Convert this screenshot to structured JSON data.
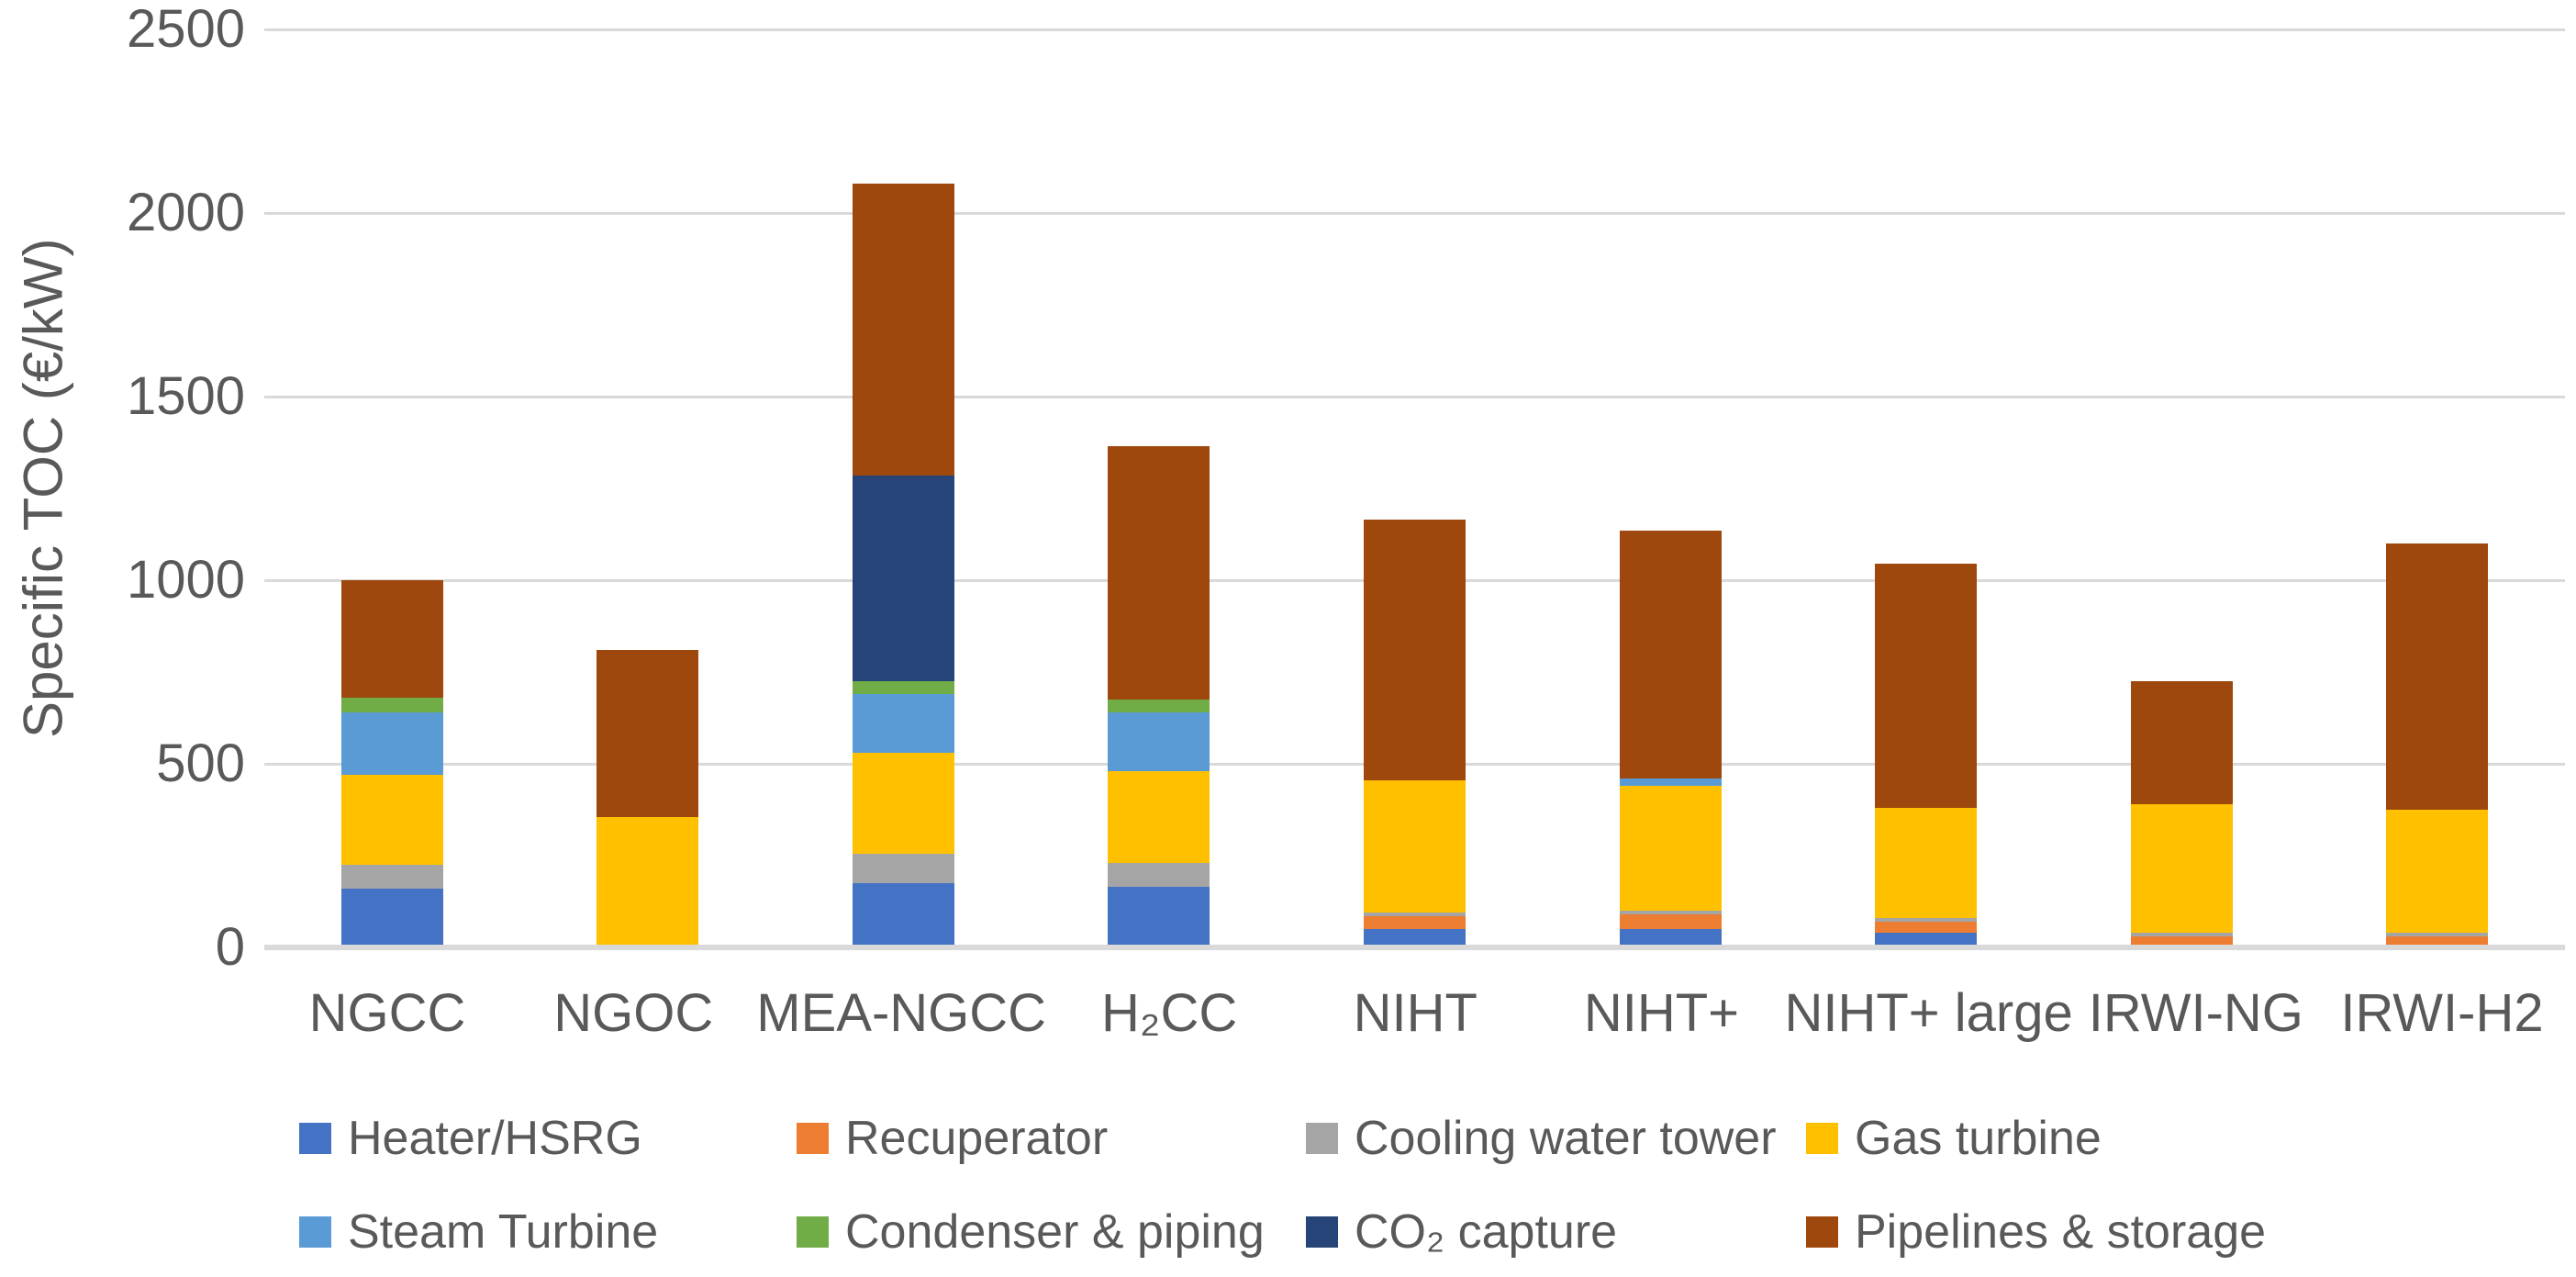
{
  "page": {
    "background": "#FFFFFF",
    "text_color": "#595959"
  },
  "chart_data": {
    "type": "bar",
    "stacked": true,
    "title": "",
    "xlabel": "",
    "ylabel": "Specific TOC (€/kW)",
    "ylim": [
      0,
      2500
    ],
    "yticks": [
      0,
      500,
      1000,
      1500,
      2000,
      2500
    ],
    "grid": "horizontal",
    "gridline_color": "#D9D9D9",
    "axis_line_color": "#D9D9D9",
    "label_color": "#595959",
    "legend_position": "bottom",
    "legend_rows": 2,
    "categories": [
      "NGCC",
      "NGOC",
      "MEA-NGCC",
      "H₂CC",
      "NIHT",
      "NIHT+",
      "NIHT+ large",
      "IRWI-NG",
      "IRWI-H2"
    ],
    "series": [
      {
        "name": "Heater/HSRG",
        "color": "#4472C4",
        "values": [
          160,
          0,
          175,
          165,
          50,
          50,
          40,
          0,
          0
        ]
      },
      {
        "name": "Recuperator",
        "color": "#ED7D31",
        "values": [
          0,
          0,
          0,
          0,
          35,
          40,
          30,
          30,
          30
        ]
      },
      {
        "name": "Cooling water tower",
        "color": "#A5A5A5",
        "values": [
          65,
          0,
          80,
          65,
          10,
          10,
          10,
          10,
          10
        ]
      },
      {
        "name": "Gas turbine",
        "color": "#FFC000",
        "values": [
          245,
          355,
          275,
          250,
          360,
          340,
          300,
          350,
          335
        ]
      },
      {
        "name": "Steam Turbine",
        "color": "#5B9BD5",
        "values": [
          170,
          0,
          160,
          160,
          0,
          20,
          0,
          0,
          0
        ]
      },
      {
        "name": "Condenser & piping",
        "color": "#70AD47",
        "values": [
          40,
          0,
          35,
          35,
          0,
          0,
          0,
          0,
          0
        ]
      },
      {
        "name": "CO₂ capture",
        "color": "#264478",
        "values": [
          0,
          0,
          560,
          0,
          0,
          0,
          0,
          0,
          0
        ]
      },
      {
        "name": "Pipelines & storage",
        "color": "#9E480E",
        "values": [
          320,
          455,
          795,
          690,
          710,
          675,
          665,
          335,
          725
        ]
      }
    ],
    "totals": [
      1000,
      810,
      2080,
      1365,
      1165,
      1135,
      1045,
      725,
      1100
    ]
  }
}
